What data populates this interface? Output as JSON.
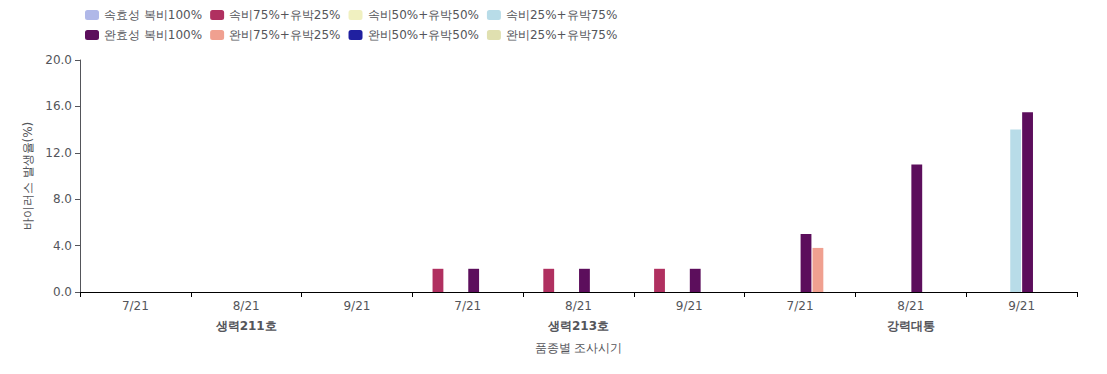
{
  "chart_data": {
    "type": "bar",
    "xlabel": "품종별 조사시기",
    "ylabel": "바이러스 발생율(%)",
    "categories": [
      "7/21",
      "8/21",
      "9/21",
      "7/21",
      "8/21",
      "9/21",
      "7/21",
      "8/21",
      "9/21"
    ],
    "annotations": [
      "생력211호",
      "생력213호",
      "강력대통"
    ],
    "series": [
      {
        "name": "속효성 복비100%",
        "color": "#b0b8e8",
        "values": [
          0,
          0,
          0,
          0,
          0,
          0,
          0,
          0,
          0
        ]
      },
      {
        "name": "속비75%+유박25%",
        "color": "#b03060",
        "values": [
          0,
          0,
          0,
          2.0,
          2.0,
          2.0,
          0,
          0,
          0
        ]
      },
      {
        "name": "속비50%+유박50%",
        "color": "#f0f0c0",
        "values": [
          0,
          0,
          0,
          0,
          0,
          0,
          0,
          0,
          0
        ]
      },
      {
        "name": "속비25%+유박75%",
        "color": "#b8dce8",
        "values": [
          0,
          0,
          0,
          0,
          0,
          0,
          0,
          0,
          14.0
        ]
      },
      {
        "name": "완효성 복비100%",
        "color": "#5c0e5c",
        "values": [
          0,
          0,
          0,
          2.0,
          2.0,
          2.0,
          5.0,
          11.0,
          15.5
        ]
      },
      {
        "name": "완비75%+유박25%",
        "color": "#f0a090",
        "values": [
          0,
          0,
          0,
          0,
          0,
          0,
          3.8,
          0,
          0
        ]
      },
      {
        "name": "완비50%+유박50%",
        "color": "#2020a0",
        "values": [
          0,
          0,
          0,
          0,
          0,
          0,
          0,
          0,
          0
        ]
      },
      {
        "name": "완비25%+유박75%",
        "color": "#e0e0b0",
        "values": [
          0,
          0,
          0,
          0,
          0,
          0,
          0,
          0,
          0
        ]
      }
    ],
    "ylim": [
      0.0,
      20.0
    ],
    "yticks": [
      {
        "value": 0,
        "label": "0.0"
      },
      {
        "value": 4,
        "label": "4.0"
      },
      {
        "value": 8,
        "label": "8.0"
      },
      {
        "value": 12,
        "label": "12.0"
      },
      {
        "value": 16,
        "label": "16.0"
      },
      {
        "value": 20,
        "label": "20.0"
      }
    ],
    "grid": false,
    "legend": "upper left"
  }
}
